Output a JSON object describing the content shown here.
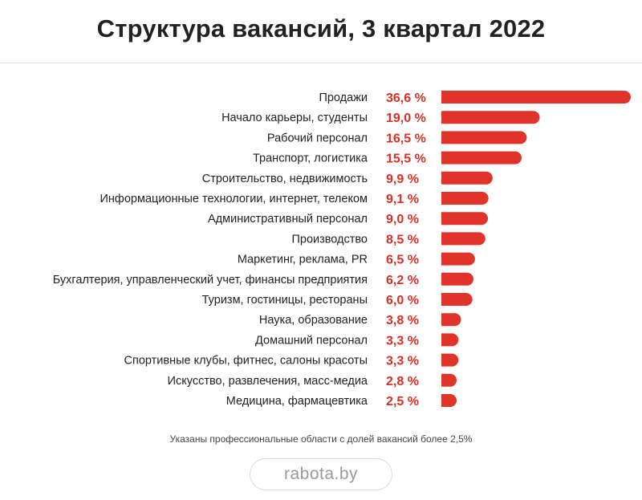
{
  "title": "Структура вакансий, 3 квартал 2022",
  "footnote": "Указаны профессиональные области с долей вакансий более 2,5%",
  "brand": "rabota.by",
  "colors": {
    "bar": "#e0342b",
    "value_text": "#d93025",
    "label_text": "#222222"
  },
  "chart_data": {
    "type": "bar",
    "orientation": "horizontal",
    "title": "Структура вакансий, 3 квартал 2022",
    "xlabel": "",
    "ylabel": "",
    "grid": false,
    "categories": [
      "Продажи",
      "Начало карьеры, студенты",
      "Рабочий персонал",
      "Транспорт, логистика",
      "Строительство, недвижимость",
      "Информационные технологии, интернет, телеком",
      "Административный персонал",
      "Производство",
      "Маркетинг, реклама, PR",
      "Бухгалтерия, управленческий учет, финансы предприятия",
      "Туризм, гостиницы, рестораны",
      "Наука, образование",
      "Домашний персонал",
      "Спортивные клубы, фитнес, салоны красоты",
      "Искусство, развлечения, масс-медиа",
      "Медицина, фармацевтика"
    ],
    "values": [
      36.6,
      19.0,
      16.5,
      15.5,
      9.9,
      9.1,
      9.0,
      8.5,
      6.5,
      6.2,
      6.0,
      3.8,
      3.3,
      3.3,
      2.8,
      2.5
    ],
    "value_labels": [
      "36,6 %",
      "19,0 %",
      "16,5 %",
      "15,5 %",
      "9,9 %",
      "9,1 %",
      "9,0 %",
      "8,5 %",
      "6,5 %",
      "6,2 %",
      "6,0 %",
      "3,8 %",
      "3,3 %",
      "3,3 %",
      "2,8 %",
      "2,5 %"
    ],
    "xlim": [
      0,
      36.6
    ]
  }
}
